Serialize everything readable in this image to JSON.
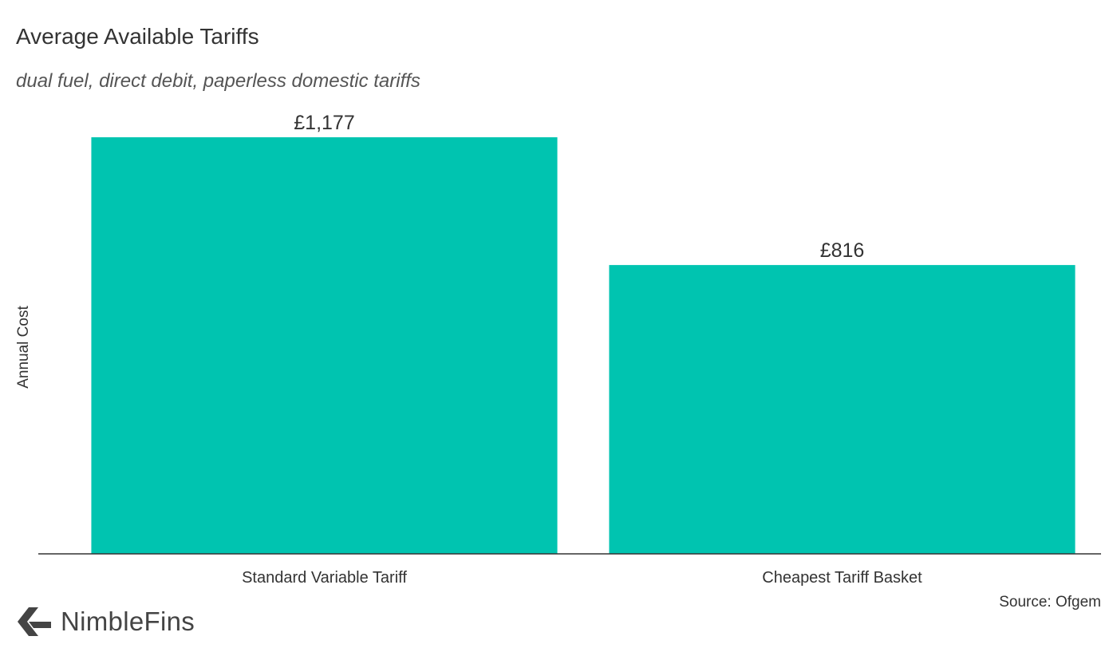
{
  "header": {
    "title": "Average Available Tariffs",
    "subtitle": "dual fuel, direct debit, paperless domestic tariffs"
  },
  "footer": {
    "source": "Source: Ofgem",
    "brand": "NimbleFins",
    "brand_icon": "nimblefins-logo-icon"
  },
  "chart_data": {
    "type": "bar",
    "title": "Average Available Tariffs",
    "subtitle": "dual fuel, direct debit, paperless domestic tariffs",
    "xlabel": "",
    "ylabel": "Annual Cost",
    "categories": [
      "Standard Variable Tariff",
      "Cheapest Tariff Basket"
    ],
    "values": [
      1177,
      816
    ],
    "data_labels": [
      "£1,177",
      "£816"
    ],
    "ylim": [
      0,
      1177
    ],
    "grid": false,
    "legend": "none",
    "colors": {
      "bar": "#00C4B0",
      "axis": "#333333",
      "text": "#333333"
    }
  }
}
